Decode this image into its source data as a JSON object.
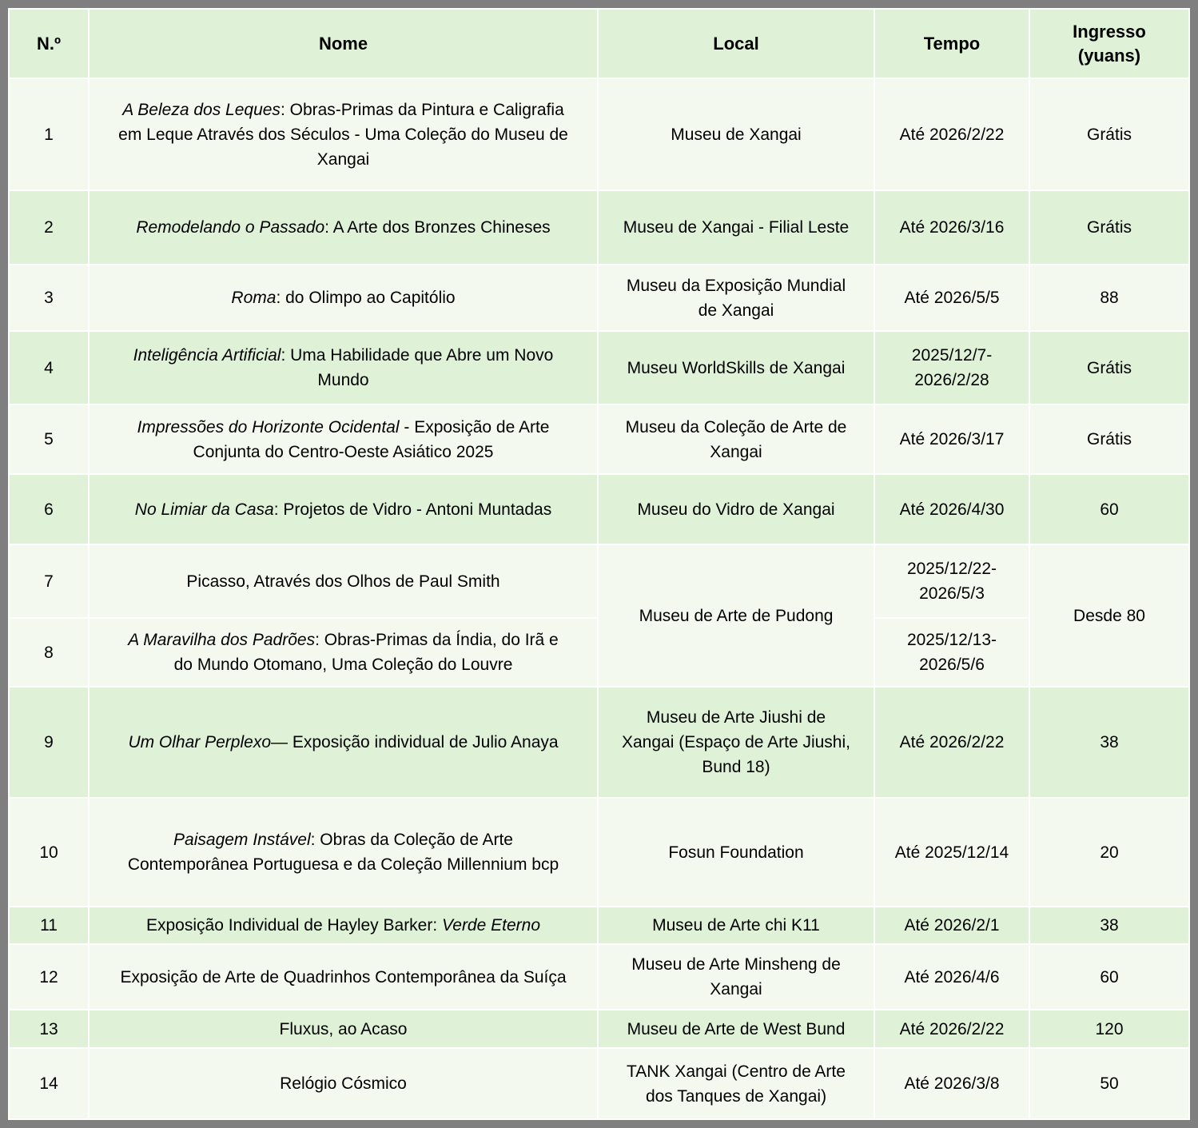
{
  "colors": {
    "frame_gray": "#7f7f7f",
    "grid_white": "#ffffff",
    "row_green": "#dff2d8",
    "row_light": "#f3f9ef",
    "text": "#000000"
  },
  "table": {
    "columns": [
      {
        "label": "N.º"
      },
      {
        "label": "Nome"
      },
      {
        "label": "Local"
      },
      {
        "label": "Tempo"
      },
      {
        "label": "Ingresso\n(yuans)"
      }
    ],
    "rows": [
      {
        "num": "1",
        "shade": "light",
        "nome": [
          {
            "text": "A Beleza dos Leques",
            "italic": true
          },
          {
            "text": ": Obras-Primas da Pintura e Caligrafia em Leque Através dos Séculos - Uma Coleção do Museu de Xangai",
            "italic": false
          }
        ],
        "local": "Museu de Xangai",
        "tempo": "Até 2026/2/22",
        "ingresso": "Grátis"
      },
      {
        "num": "2",
        "shade": "green",
        "nome": [
          {
            "text": "Remodelando o Passado",
            "italic": true
          },
          {
            "text": ": A Arte dos Bronzes Chineses",
            "italic": false
          }
        ],
        "local": "Museu de Xangai - Filial Leste",
        "tempo": "Até 2026/3/16",
        "ingresso": "Grátis"
      },
      {
        "num": "3",
        "shade": "light",
        "nome": [
          {
            "text": "Roma",
            "italic": true
          },
          {
            "text": ": do Olimpo ao Capitólio",
            "italic": false
          }
        ],
        "local": "Museu da Exposição Mundial de Xangai",
        "tempo": "Até 2026/5/5",
        "ingresso": "88"
      },
      {
        "num": "4",
        "shade": "green",
        "nome": [
          {
            "text": "Inteligência Artificial",
            "italic": true
          },
          {
            "text": ": Uma Habilidade que Abre um Novo Mundo",
            "italic": false
          }
        ],
        "local": "Museu WorldSkills de Xangai",
        "tempo": "2025/12/7-2026/2/28",
        "ingresso": "Grátis"
      },
      {
        "num": "5",
        "shade": "light",
        "nome": [
          {
            "text": "Impressões do Horizonte Ocidental",
            "italic": true
          },
          {
            "text": " - Exposição de Arte Conjunta do Centro-Oeste Asiático 2025",
            "italic": false
          }
        ],
        "local": "Museu da Coleção de Arte de Xangai",
        "tempo": "Até 2026/3/17",
        "ingresso": "Grátis"
      },
      {
        "num": "6",
        "shade": "green",
        "nome": [
          {
            "text": "No Limiar da Casa",
            "italic": true
          },
          {
            "text": ": Projetos de Vidro - Antoni Muntadas",
            "italic": false
          }
        ],
        "local": "Museu do Vidro de Xangai",
        "tempo": "Até 2026/4/30",
        "ingresso": "60"
      },
      {
        "num": "7",
        "shade": "light",
        "nome": [
          {
            "text": "Picasso, Através dos Olhos de Paul Smith",
            "italic": false
          }
        ],
        "local": {
          "text": "Museu de Arte de Pudong",
          "rowspan": 2
        },
        "tempo": "2025/12/22-2026/5/3",
        "ingresso": {
          "text": "Desde 80",
          "rowspan": 2
        }
      },
      {
        "num": "8",
        "shade": "light",
        "nome": [
          {
            "text": "A Maravilha dos Padrões",
            "italic": true
          },
          {
            "text": ": Obras-Primas da Índia, do Irã e do Mundo Otomano, Uma Coleção do Louvre",
            "italic": false
          }
        ],
        "local": null,
        "tempo": "2025/12/13-2026/5/6",
        "ingresso": null
      },
      {
        "num": "9",
        "shade": "green",
        "nome": [
          {
            "text": "Um Olhar Perplexo",
            "italic": true
          },
          {
            "text": "— Exposição individual de Julio Anaya",
            "italic": false
          }
        ],
        "local": "Museu de Arte Jiushi de Xangai (Espaço de Arte Jiushi, Bund 18)",
        "tempo": "Até 2026/2/22",
        "ingresso": "38"
      },
      {
        "num": "10",
        "shade": "light",
        "nome": [
          {
            "text": "Paisagem Instável",
            "italic": true
          },
          {
            "text": ": Obras da Coleção de Arte Contemporânea Portuguesa e da Coleção Millennium bcp",
            "italic": false
          }
        ],
        "local": "Fosun Foundation",
        "tempo": "Até 2025/12/14",
        "ingresso": "20"
      },
      {
        "num": "11",
        "shade": "green",
        "nome": [
          {
            "text": "Exposição Individual de Hayley Barker: ",
            "italic": false
          },
          {
            "text": "Verde Eterno",
            "italic": true
          }
        ],
        "local": "Museu de Arte chi K11",
        "tempo": "Até 2026/2/1",
        "ingresso": "38"
      },
      {
        "num": "12",
        "shade": "light",
        "nome": [
          {
            "text": "Exposição de Arte de Quadrinhos Contemporânea da Suíça",
            "italic": false
          }
        ],
        "local": "Museu de Arte Minsheng de Xangai",
        "tempo": "Até 2026/4/6",
        "ingresso": "60"
      },
      {
        "num": "13",
        "shade": "green",
        "nome": [
          {
            "text": "Fluxus, ao Acaso",
            "italic": false
          }
        ],
        "local": "Museu de Arte de West Bund",
        "tempo": "Até 2026/2/22",
        "ingresso": "120"
      },
      {
        "num": "14",
        "shade": "light",
        "nome": [
          {
            "text": "Relógio Cósmico",
            "italic": false
          }
        ],
        "local": "TANK Xangai (Centro de Arte dos Tanques de Xangai)",
        "tempo": "Até 2026/3/8",
        "ingresso": "50"
      }
    ]
  }
}
